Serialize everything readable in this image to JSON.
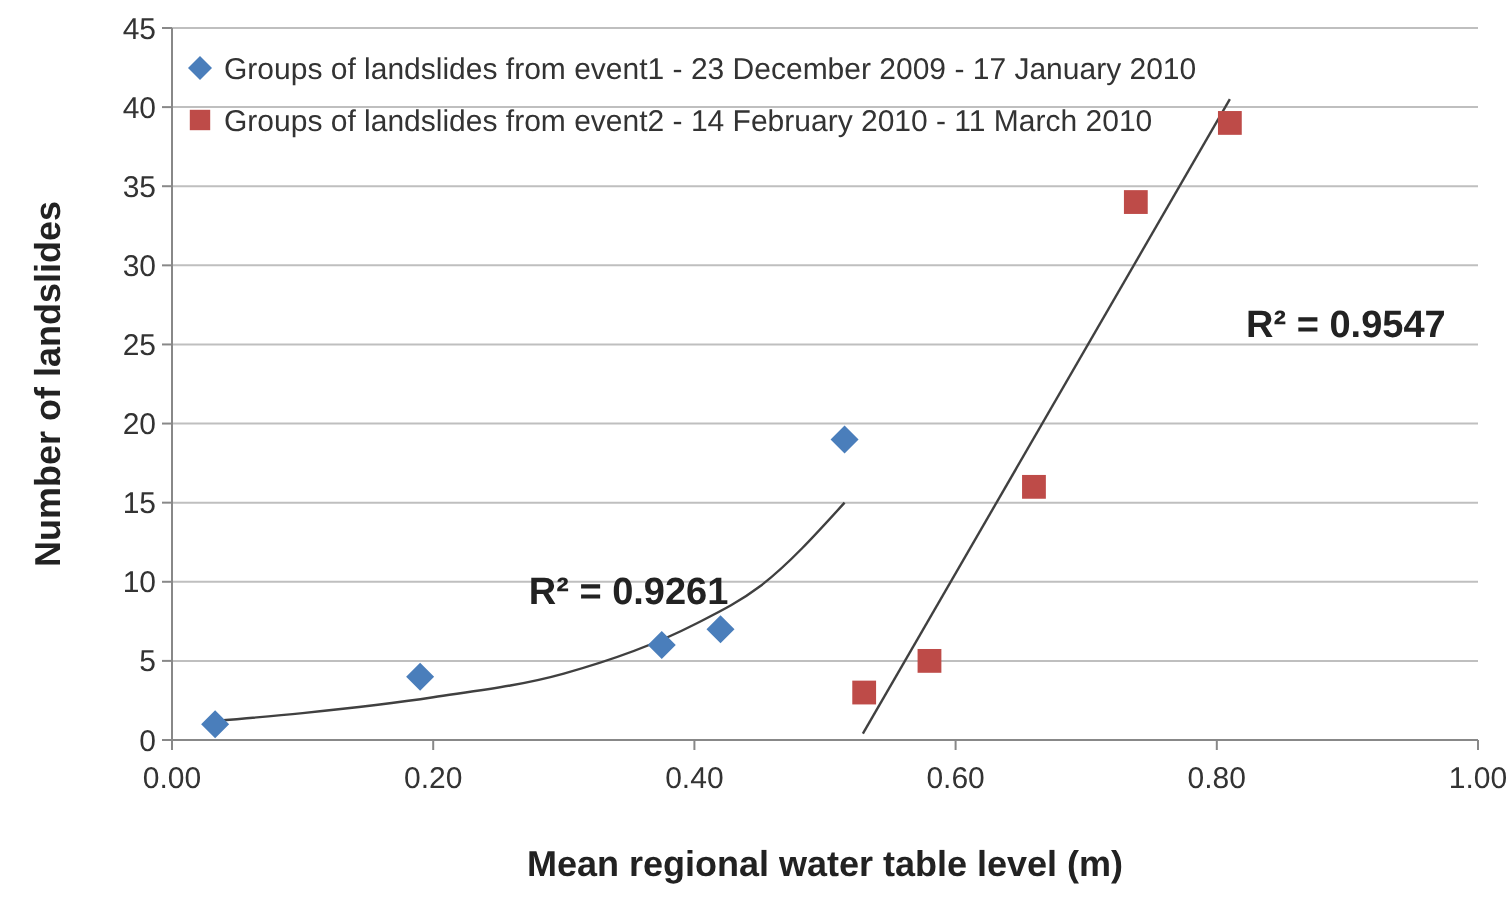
{
  "chart_data": {
    "type": "scatter",
    "xlabel": "Mean regional water table level (m)",
    "ylabel": "Number of landslides",
    "xlim": [
      0,
      1
    ],
    "xticks": [
      {
        "value": 0,
        "label": "0.00"
      },
      {
        "value": 0.2,
        "label": "0.20"
      },
      {
        "value": 0.4,
        "label": "0.40"
      },
      {
        "value": 0.6,
        "label": "0.60"
      },
      {
        "value": 0.8,
        "label": "0.80"
      },
      {
        "value": 1,
        "label": "1.00"
      }
    ],
    "ylim": [
      0,
      45
    ],
    "yticks": [
      0,
      5,
      10,
      15,
      20,
      25,
      30,
      35,
      40,
      45
    ],
    "grid": "y",
    "legend": "top left",
    "series": [
      {
        "name": "Groups of landslides from event1 - 23 December 2009 - 17 January 2010",
        "color": "#4a7ebb",
        "marker": "diamond",
        "x": [
          0.033,
          0.19,
          0.375,
          0.42,
          0.515
        ],
        "values": [
          1,
          4,
          6,
          7,
          19
        ]
      },
      {
        "name": "Groups of landslides from event2 - 14 February 2010 - 11 March 2010",
        "color": "#be4b48",
        "marker": "square",
        "x": [
          0.53,
          0.58,
          0.66,
          0.738,
          0.81
        ],
        "values": [
          3,
          5,
          16,
          34,
          39
        ]
      },
      {
        "type": "line",
        "color": "#404040",
        "marker": "none",
        "x": [
          0.033,
          0.1,
          0.2,
          0.3,
          0.4,
          0.45,
          0.515
        ],
        "values": [
          1.2,
          1.7,
          2.7,
          4.2,
          7.3,
          9.7,
          15
        ]
      },
      {
        "type": "line",
        "color": "#404040",
        "marker": "none",
        "x": [
          0.529,
          0.81
        ],
        "values": [
          0.4,
          40.5
        ]
      }
    ],
    "annotations": [
      "R² = 0.9261",
      "R² = 0.9547"
    ]
  }
}
